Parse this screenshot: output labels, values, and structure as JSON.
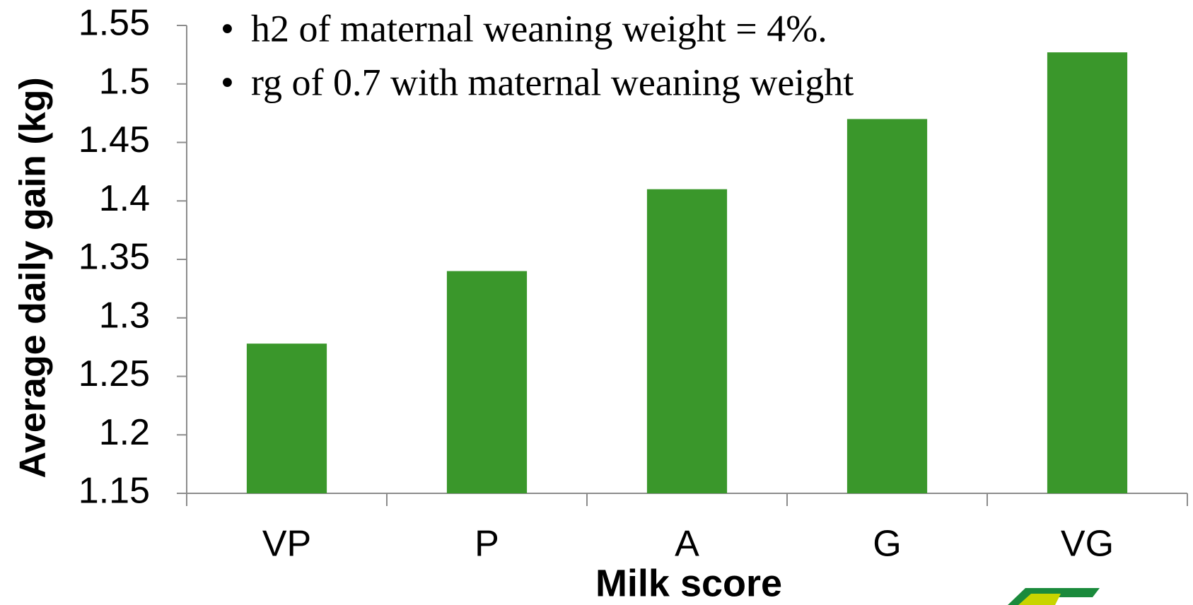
{
  "chart_data": {
    "type": "bar",
    "x_label": "Milk score",
    "y_label": "Average daily gain (kg)",
    "annotations": [
      "h2 of maternal weaning weight = 4%.",
      "rg of 0.7 with maternal weaning weight"
    ],
    "categories": [
      "VP",
      "P",
      "A",
      "G",
      "VG"
    ],
    "values": [
      1.278,
      1.34,
      1.41,
      1.47,
      1.527
    ],
    "color": "#3a972b",
    "ylim": [
      1.15,
      1.55
    ],
    "yticks": [
      1.15,
      1.2,
      1.25,
      1.3,
      1.35,
      1.4,
      1.45,
      1.5,
      1.55
    ],
    "grid": false
  }
}
